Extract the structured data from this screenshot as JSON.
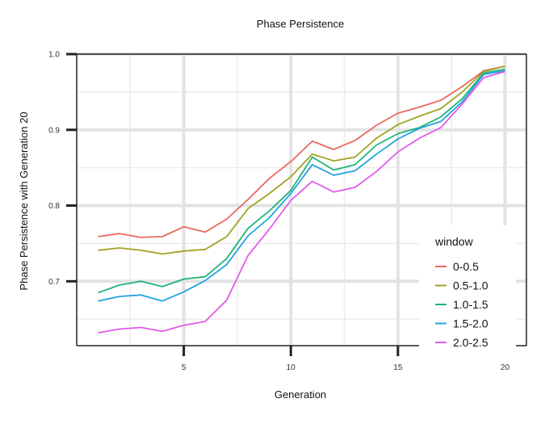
{
  "chart_data": {
    "type": "line",
    "title": "Phase Persistence",
    "xlabel": "Generation",
    "ylabel": "Phase Persistence with Generation 20",
    "x": [
      1,
      2,
      3,
      4,
      5,
      6,
      7,
      8,
      9,
      10,
      11,
      12,
      13,
      14,
      15,
      16,
      17,
      18,
      19,
      20
    ],
    "xlim": [
      0,
      21
    ],
    "ylim": [
      0.615,
      1.0
    ],
    "xticks": [
      5,
      10,
      15,
      20
    ],
    "xtick_labels": [
      "5",
      "10",
      "15",
      "20"
    ],
    "yticks": [
      0.7,
      0.8,
      0.9,
      1.0
    ],
    "ytick_labels": [
      "0.7",
      "0.8",
      "0.9",
      "1.0"
    ],
    "grid": true,
    "legend": {
      "title": "window",
      "position": "bottom-right"
    },
    "series": [
      {
        "name": "0-0.5",
        "color": "#E9685F",
        "values": [
          0.759,
          0.763,
          0.758,
          0.759,
          0.772,
          0.765,
          0.782,
          0.808,
          0.836,
          0.858,
          0.885,
          0.874,
          0.886,
          0.906,
          0.922,
          0.93,
          0.939,
          0.957,
          0.978,
          0.984
        ]
      },
      {
        "name": "0.5-1.0",
        "color": "#A1A223",
        "values": [
          0.741,
          0.744,
          0.741,
          0.736,
          0.74,
          0.742,
          0.759,
          0.796,
          0.816,
          0.838,
          0.868,
          0.859,
          0.864,
          0.889,
          0.907,
          0.918,
          0.928,
          0.95,
          0.977,
          0.984
        ]
      },
      {
        "name": "1.0-1.5",
        "color": "#1FB577",
        "values": [
          0.685,
          0.695,
          0.7,
          0.693,
          0.703,
          0.706,
          0.73,
          0.77,
          0.793,
          0.82,
          0.864,
          0.847,
          0.854,
          0.88,
          0.895,
          0.903,
          0.917,
          0.941,
          0.975,
          0.98
        ]
      },
      {
        "name": "1.5-2.0",
        "color": "#20A3E1",
        "values": [
          0.674,
          0.68,
          0.682,
          0.674,
          0.686,
          0.701,
          0.722,
          0.76,
          0.784,
          0.816,
          0.854,
          0.84,
          0.846,
          0.868,
          0.888,
          0.902,
          0.911,
          0.937,
          0.973,
          0.978
        ]
      },
      {
        "name": "2.0-2.5",
        "color": "#E25AE9",
        "values": [
          0.632,
          0.637,
          0.639,
          0.634,
          0.642,
          0.647,
          0.675,
          0.734,
          0.769,
          0.807,
          0.832,
          0.818,
          0.824,
          0.845,
          0.871,
          0.889,
          0.903,
          0.934,
          0.969,
          0.977
        ]
      }
    ]
  }
}
